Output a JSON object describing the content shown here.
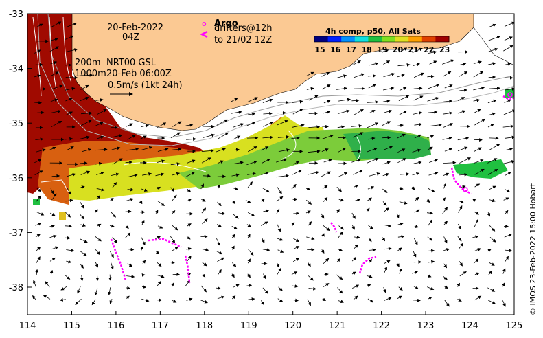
{
  "map": {
    "date_label": "20-Feb-2022",
    "time_label": "04Z",
    "legend_argo_symbol": "o",
    "legend_argo_label": "Argo",
    "legend_drifters_label": "drifters@12h",
    "legend_drifters_until": "to 21/02 12Z",
    "depth_200_label": "200m",
    "depth_1000_label": "1000m",
    "current_source_label": "NRT00 GSL",
    "current_time_label": "20-Feb 06:00Z",
    "scale_vector_label": "0.5m/s (1kt 24h)",
    "colorbar_title": "4h comp, p50, All Sats",
    "colorbar_ticks": [
      "15",
      "16",
      "17",
      "18",
      "19",
      "20",
      "21",
      "22",
      "23"
    ],
    "colorbar_colors": [
      "#00007f",
      "#0020ff",
      "#0090ff",
      "#10e0e0",
      "#20c040",
      "#80e020",
      "#e0e020",
      "#ffa000",
      "#e04000",
      "#a00000"
    ],
    "credit": "© IMOS 23-Feb-2022 15:00 Hobart",
    "x_ticks": [
      "114",
      "115",
      "116",
      "117",
      "118",
      "119",
      "120",
      "121",
      "122",
      "123",
      "124",
      "125"
    ],
    "y_ticks": [
      "-33",
      "-34",
      "-35",
      "-36",
      "-37",
      "-38"
    ],
    "land_color": "#fbc993",
    "argo_color": "#ff00ff"
  }
}
